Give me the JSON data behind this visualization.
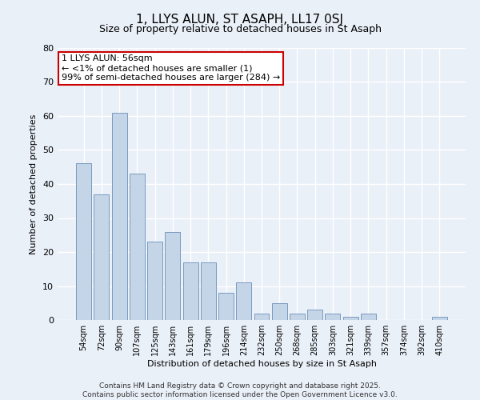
{
  "title": "1, LLYS ALUN, ST ASAPH, LL17 0SJ",
  "subtitle": "Size of property relative to detached houses in St Asaph",
  "xlabel": "Distribution of detached houses by size in St Asaph",
  "ylabel": "Number of detached properties",
  "bar_color": "#c5d5e8",
  "bar_edge_color": "#7a9abf",
  "categories": [
    "54sqm",
    "72sqm",
    "90sqm",
    "107sqm",
    "125sqm",
    "143sqm",
    "161sqm",
    "179sqm",
    "196sqm",
    "214sqm",
    "232sqm",
    "250sqm",
    "268sqm",
    "285sqm",
    "303sqm",
    "321sqm",
    "339sqm",
    "357sqm",
    "374sqm",
    "392sqm",
    "410sqm"
  ],
  "values": [
    46,
    37,
    61,
    43,
    23,
    26,
    17,
    17,
    8,
    11,
    2,
    5,
    2,
    3,
    2,
    1,
    2,
    0,
    0,
    0,
    1
  ],
  "ylim": [
    0,
    80
  ],
  "yticks": [
    0,
    10,
    20,
    30,
    40,
    50,
    60,
    70,
    80
  ],
  "annotation_text": "1 LLYS ALUN: 56sqm\n← <1% of detached houses are smaller (1)\n99% of semi-detached houses are larger (284) →",
  "footer": "Contains HM Land Registry data © Crown copyright and database right 2025.\nContains public sector information licensed under the Open Government Licence v3.0.",
  "bg_color": "#eaf0f8",
  "plot_bg_color": "#eaf0f8",
  "grid_color": "#ffffff",
  "annotation_box_color": "#ffffff",
  "annotation_box_edge": "#cc0000",
  "title_fontsize": 11,
  "subtitle_fontsize": 9,
  "ylabel_fontsize": 8,
  "xlabel_fontsize": 8,
  "tick_fontsize": 8,
  "xtick_fontsize": 7,
  "annotation_fontsize": 8,
  "footer_fontsize": 6.5
}
